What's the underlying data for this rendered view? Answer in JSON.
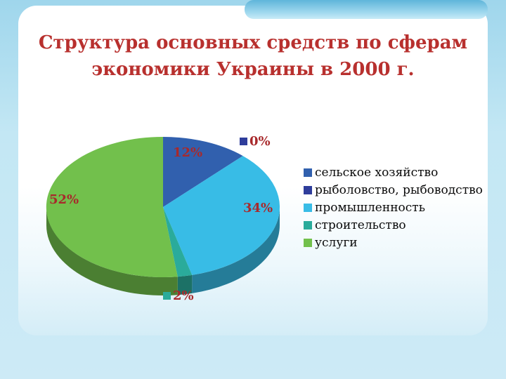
{
  "slide": {
    "title_line1": "Структура основных средств по сферам",
    "title_line2": "экономики Украины в 2000 г.",
    "title_color": "#b8302e",
    "data_label_color": "#a8292b"
  },
  "chart_data": {
    "type": "pie",
    "style": "3d",
    "title": "Структура основных средств по сферам экономики Украины в 2000 г.",
    "unit": "%",
    "legend_position": "right",
    "slices": [
      {
        "label": "сельское хозяйство",
        "value": 12,
        "data_label": "12%",
        "color": "#3160ae"
      },
      {
        "label": "рыболовство, рыбоводство",
        "value": 0,
        "data_label": "0%",
        "color": "#2e3d9b"
      },
      {
        "label": "промышленность",
        "value": 34,
        "data_label": "34%",
        "color": "#38bce6"
      },
      {
        "label": "строительство",
        "value": 2,
        "data_label": "2%",
        "color": "#2aab9b"
      },
      {
        "label": "услуги",
        "value": 52,
        "data_label": "52%",
        "color": "#72c04c"
      }
    ]
  }
}
